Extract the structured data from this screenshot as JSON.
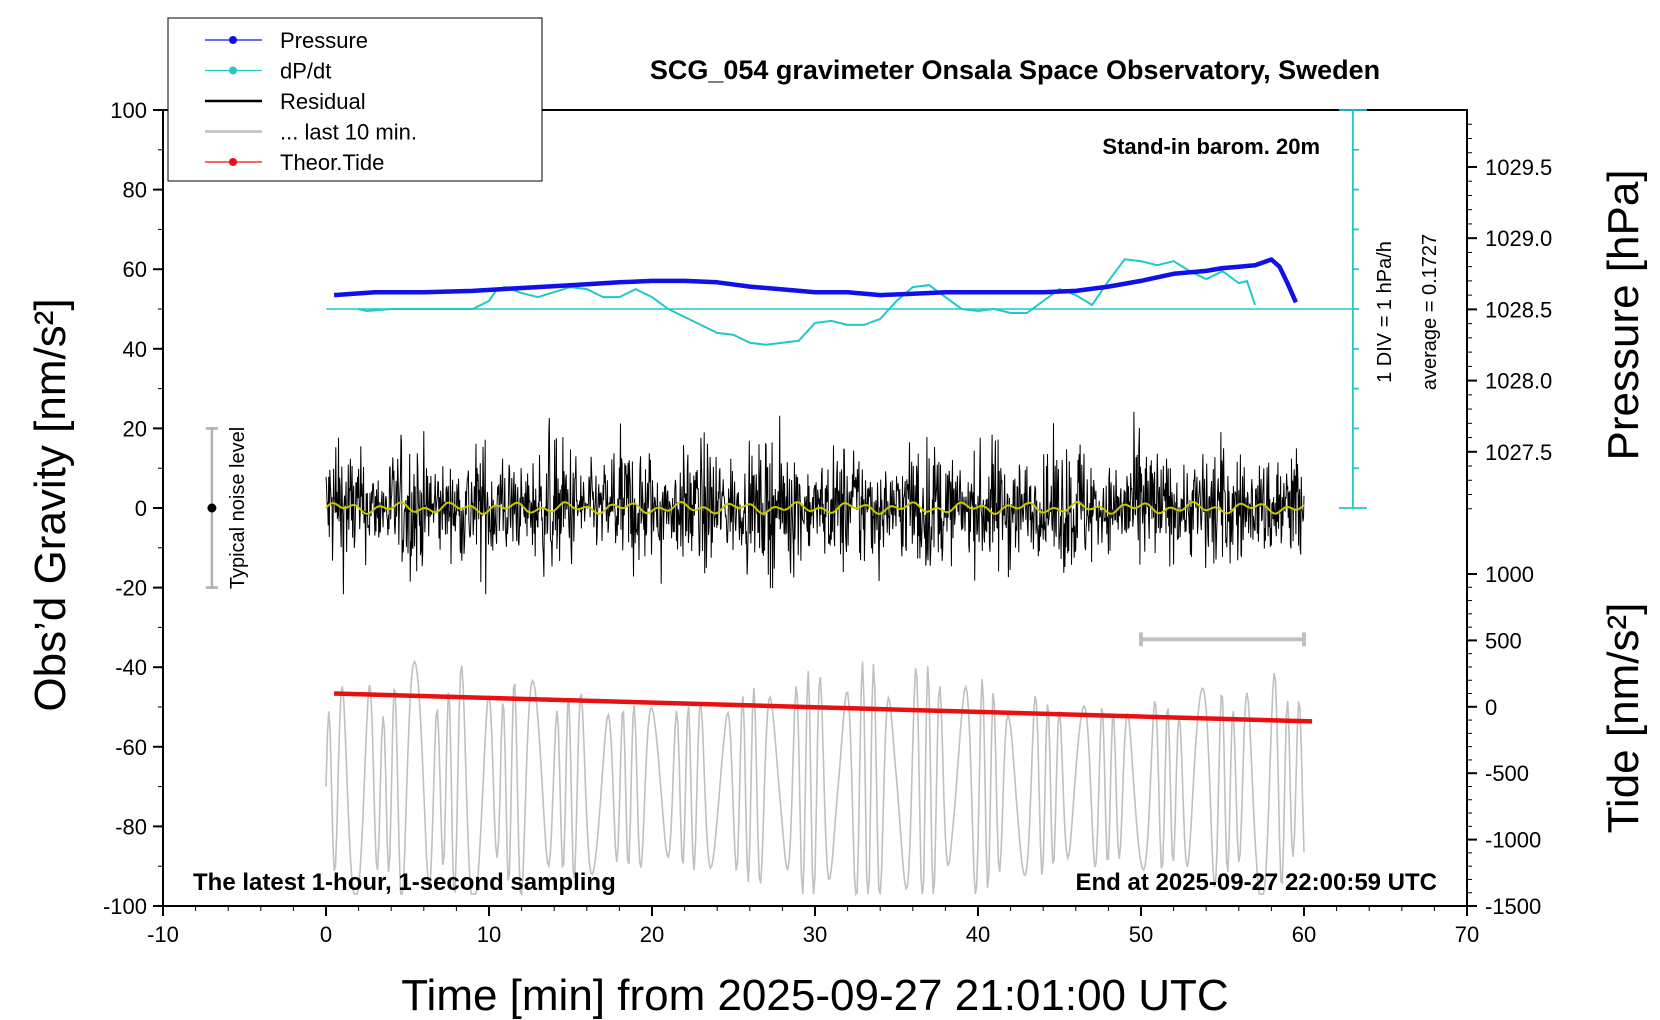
{
  "chart_data": {
    "type": "line",
    "title": "SCG_054 gravimeter Onsala Space Observatory, Sweden",
    "xlabel": "Time [min] from 2025-09-27 21:01:00 UTC",
    "ylabel_left": "Obs’d Gravity [nm/s²]",
    "ylabel_right_top": "Pressure [hPa]",
    "ylabel_right_bottom": "Tide [nm/s²]",
    "xlim": [
      -10,
      70
    ],
    "ylim": [
      -100,
      100
    ],
    "pressure_ylim": [
      1027.0,
      1029.9
    ],
    "tide_ylim": [
      -1500,
      1000
    ],
    "x_ticks": [
      "-10",
      "0",
      "10",
      "20",
      "30",
      "40",
      "50",
      "60",
      "70"
    ],
    "y_ticks": [
      "100",
      "80",
      "60",
      "40",
      "20",
      "0",
      "-20",
      "-40",
      "-60",
      "-80",
      "-100"
    ],
    "pressure_ticks": [
      "1029.5",
      "1029.0",
      "1028.5",
      "1028.0",
      "1027.5"
    ],
    "tide_ticks": [
      "1000",
      "500",
      "0",
      "-500",
      "-1000",
      "-1500"
    ],
    "grid": false,
    "legend_position": "top-left",
    "legend": [
      {
        "label": "Pressure",
        "color": "#1010e8",
        "marker": "dot"
      },
      {
        "label": "dP/dt",
        "color": "#20c8c8",
        "marker": "dot"
      },
      {
        "label": "Residual",
        "color": "#000000",
        "marker": "line"
      },
      {
        "label": "... last 10 min.",
        "color": "#c0c0c0",
        "marker": "line"
      },
      {
        "label": "Theor.Tide",
        "color": "#e81010",
        "marker": "dot"
      }
    ],
    "annotations": {
      "barometer": "Stand-in barom. 20m",
      "scale_div": "1 DIV = 1 hPa/h",
      "average": "average = 0.1727",
      "noise": "Typical noise level",
      "sampling": "The latest 1-hour, 1-second sampling",
      "end_time": "End at 2025-09-27 22:00:59 UTC"
    },
    "noise_bar": {
      "x": -7,
      "y_low": -20,
      "y_high": 20,
      "y_center": 0
    },
    "last10_bar": {
      "x_start": 50,
      "x_end": 60
    },
    "dpdt_scale": {
      "x": 63,
      "y_low": 0,
      "y_high": 100,
      "baseline": 50
    },
    "series": [
      {
        "name": "Pressure",
        "axis": "pressure",
        "color": "#1010e8",
        "x": [
          0.5,
          3,
          6,
          9,
          12,
          15,
          18,
          20,
          22,
          24,
          26,
          28,
          30,
          32,
          34,
          36,
          38,
          40,
          42,
          44,
          46,
          48,
          50,
          52,
          54,
          55,
          56,
          57,
          57.5,
          58,
          58.5,
          59,
          59.5
        ],
        "y": [
          1028.6,
          1028.62,
          1028.62,
          1028.63,
          1028.65,
          1028.67,
          1028.69,
          1028.7,
          1028.7,
          1028.69,
          1028.66,
          1028.64,
          1028.62,
          1028.62,
          1028.6,
          1028.61,
          1028.62,
          1028.62,
          1028.62,
          1028.62,
          1028.63,
          1028.66,
          1028.7,
          1028.75,
          1028.77,
          1028.79,
          1028.8,
          1028.81,
          1028.83,
          1028.85,
          1028.8,
          1028.68,
          1028.55
        ]
      },
      {
        "name": "dP/dt",
        "axis": "gravity",
        "color": "#20c8c8",
        "x": [
          2,
          2.5,
          4,
          6,
          9,
          10,
          10.5,
          11,
          12,
          13,
          15,
          16,
          17,
          18,
          19,
          20,
          21,
          22,
          24,
          25,
          26,
          27,
          28,
          29,
          30,
          31,
          32,
          33,
          34,
          35,
          36,
          37,
          38,
          39,
          40,
          41,
          42,
          43,
          44,
          45,
          46,
          47,
          48,
          49,
          50,
          51,
          52,
          53,
          54,
          55,
          56,
          56.5,
          57
        ],
        "y": [
          50,
          49.5,
          50,
          50,
          50,
          52,
          55,
          55.5,
          54,
          53,
          55.5,
          55,
          53,
          53,
          55,
          53,
          50,
          48,
          44,
          43.5,
          41.5,
          41,
          41.5,
          42,
          46.5,
          47,
          46,
          46,
          47.5,
          52,
          55.5,
          56,
          53,
          50,
          49.5,
          50,
          49,
          49,
          52,
          55,
          53.5,
          51,
          57,
          62.5,
          62,
          61,
          62,
          59.5,
          57.5,
          59.5,
          56.5,
          57,
          51
        ]
      },
      {
        "name": "Theor.Tide",
        "axis": "tide",
        "color": "#e81010",
        "x": [
          0.5,
          60.5
        ],
        "y": [
          100,
          -110
        ]
      },
      {
        "name": "Residual",
        "axis": "gravity",
        "color": "#000000",
        "x_range": [
          0,
          60
        ],
        "summary": {
          "typical_amplitude": 20,
          "peak_min": -42,
          "peak_max": 43
        }
      },
      {
        "name": "... last 10 min.",
        "axis": "gravity",
        "color": "#c0c0c0",
        "x_range": [
          0,
          60
        ],
        "summary": {
          "center": -70,
          "amplitude_min": -97,
          "amplitude_max": -38
        }
      },
      {
        "name": "Residual smoothed",
        "axis": "gravity",
        "color": "#c8c800",
        "x_range": [
          0,
          60
        ],
        "summary": {
          "center": 0,
          "amplitude": 1.5
        }
      }
    ]
  }
}
